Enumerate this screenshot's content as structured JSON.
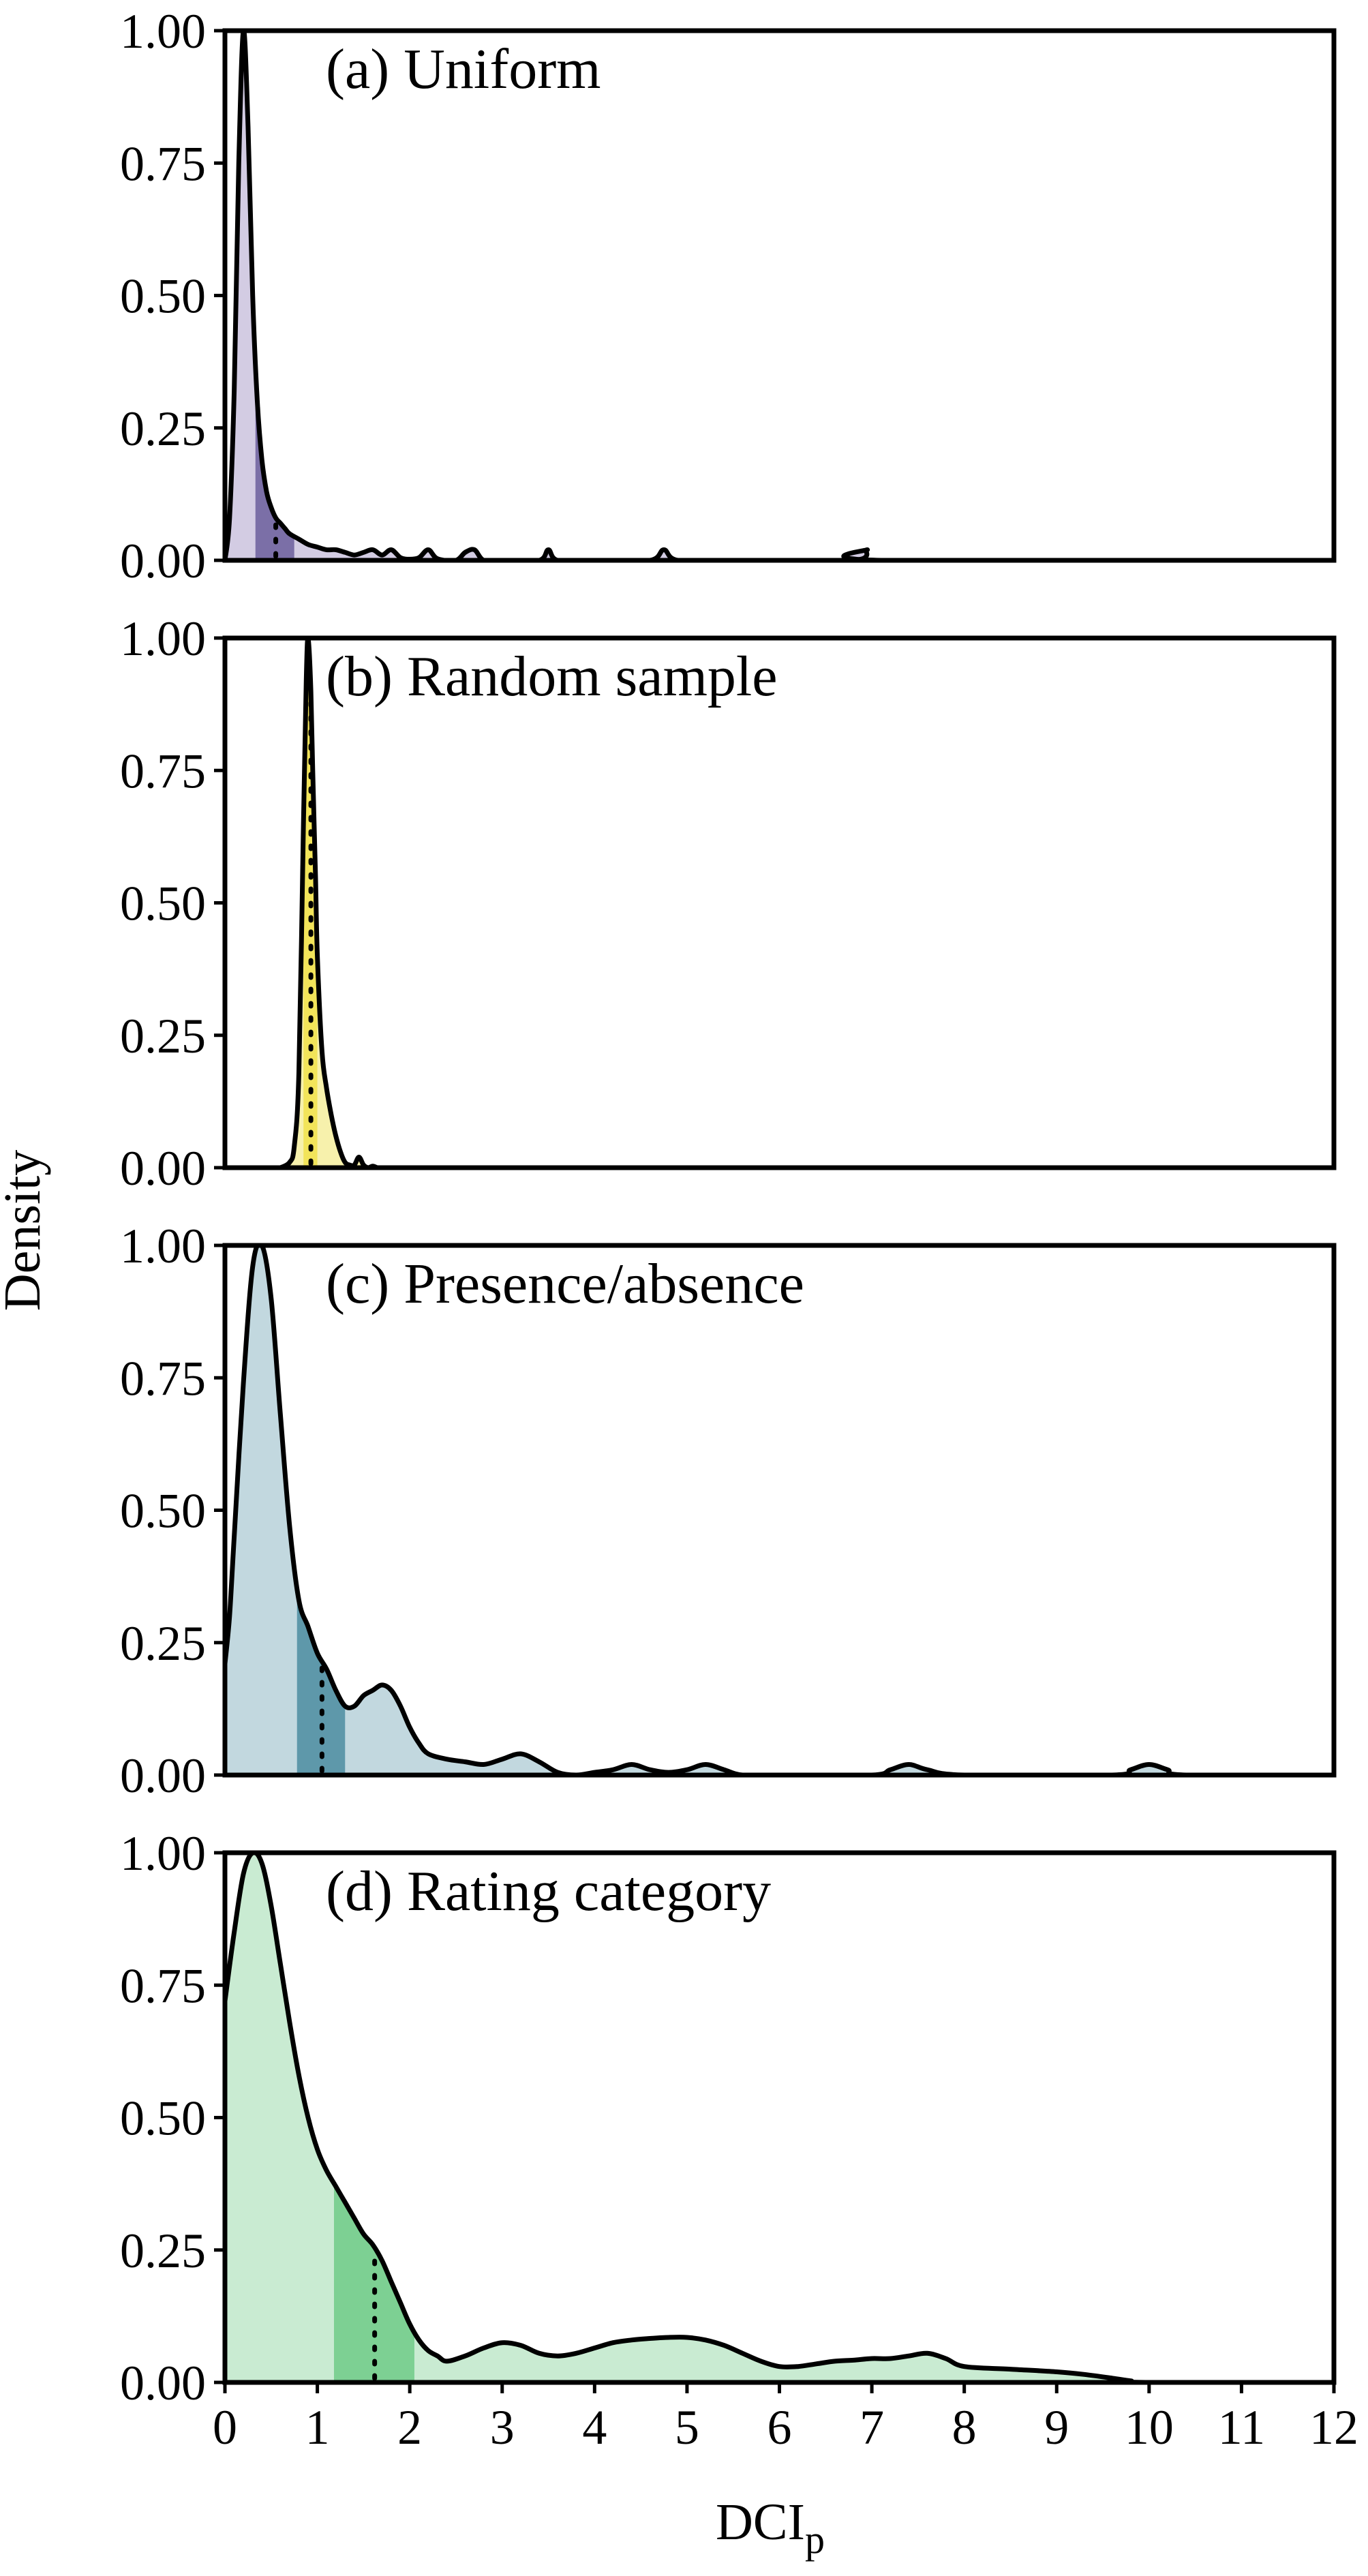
{
  "figure": {
    "ylabel": "Density",
    "xlabel_main": "DCI",
    "xlabel_sub": "p"
  },
  "chart_data": [
    {
      "type": "area",
      "title": "(a) Uniform",
      "fill_color": "#d3cce3",
      "band_color": "#7b6fa7",
      "band": [
        0.33,
        0.75
      ],
      "median": 0.55,
      "xlim": [
        0,
        12
      ],
      "ylim": [
        0,
        1
      ],
      "yticks": [
        "0.00",
        "0.25",
        "0.50",
        "0.75",
        "1.00"
      ],
      "xticks": [],
      "x": [
        0,
        0.05,
        0.1,
        0.15,
        0.2,
        0.25,
        0.3,
        0.35,
        0.4,
        0.45,
        0.5,
        0.55,
        0.6,
        0.65,
        0.7,
        0.8,
        0.9,
        1.0,
        1.1,
        1.2,
        1.3,
        1.4,
        1.5,
        1.6,
        1.7,
        1.8,
        1.9,
        2.0,
        2.1,
        2.2,
        2.3,
        2.5,
        2.6,
        2.7,
        2.8,
        3.0,
        3.4,
        3.5,
        3.6,
        4.0,
        4.6,
        4.75,
        4.9,
        5.5,
        6.8,
        6.95,
        7.1,
        12
      ],
      "values": [
        0.0,
        0.08,
        0.32,
        0.75,
        1.0,
        0.82,
        0.5,
        0.3,
        0.19,
        0.13,
        0.1,
        0.08,
        0.07,
        0.06,
        0.05,
        0.04,
        0.03,
        0.025,
        0.02,
        0.02,
        0.015,
        0.01,
        0.015,
        0.02,
        0.01,
        0.02,
        0.005,
        0.002,
        0.005,
        0.02,
        0.003,
        0.0,
        0.015,
        0.02,
        0.0,
        0.0,
        0.0,
        0.02,
        0.0,
        0.0,
        0.0,
        0.02,
        0.0,
        0.0,
        0.0,
        0.02,
        0.0,
        0.0
      ]
    },
    {
      "type": "area",
      "title": "(b) Random sample",
      "fill_color": "#f7f1ac",
      "band_color": "#f2e45a",
      "band": [
        0.85,
        1.0
      ],
      "median": 0.93,
      "xlim": [
        0,
        12
      ],
      "ylim": [
        0,
        1
      ],
      "yticks": [
        "0.00",
        "0.25",
        "0.50",
        "0.75",
        "1.00"
      ],
      "xticks": [],
      "x": [
        0.6,
        0.7,
        0.75,
        0.8,
        0.85,
        0.88,
        0.9,
        0.93,
        0.95,
        0.98,
        1.0,
        1.05,
        1.1,
        1.15,
        1.2,
        1.25,
        1.3,
        1.35,
        1.4,
        1.45,
        1.5,
        1.55,
        1.6,
        1.65,
        1.7
      ],
      "values": [
        0.0,
        0.01,
        0.04,
        0.18,
        0.65,
        0.92,
        1.0,
        0.9,
        0.75,
        0.55,
        0.4,
        0.22,
        0.15,
        0.1,
        0.06,
        0.03,
        0.01,
        0.005,
        0.005,
        0.02,
        0.005,
        0.0,
        0.003,
        0.0,
        0.0
      ]
    },
    {
      "type": "area",
      "title": "(c) Presence/absence",
      "fill_color": "#c2d8df",
      "band_color": "#5e98aa",
      "band": [
        0.78,
        1.3
      ],
      "median": 1.05,
      "xlim": [
        0,
        12
      ],
      "ylim": [
        0,
        1
      ],
      "yticks": [
        "0.00",
        "0.25",
        "0.50",
        "0.75",
        "1.00"
      ],
      "xticks": [],
      "x": [
        0,
        0.05,
        0.1,
        0.2,
        0.3,
        0.4,
        0.5,
        0.6,
        0.7,
        0.8,
        0.9,
        1.0,
        1.1,
        1.2,
        1.3,
        1.4,
        1.5,
        1.6,
        1.7,
        1.8,
        1.9,
        2.0,
        2.1,
        2.2,
        2.4,
        2.6,
        2.8,
        3.0,
        3.2,
        3.4,
        3.6,
        3.8,
        4.0,
        4.2,
        4.4,
        4.6,
        4.8,
        5.0,
        5.2,
        5.4,
        5.6,
        6.0,
        7.0,
        7.2,
        7.4,
        7.6,
        8.0,
        9.6,
        9.8,
        10.0,
        10.2,
        10.4,
        12
      ],
      "values": [
        0.21,
        0.3,
        0.45,
        0.74,
        0.96,
        1.0,
        0.9,
        0.68,
        0.47,
        0.33,
        0.28,
        0.23,
        0.2,
        0.16,
        0.13,
        0.13,
        0.15,
        0.16,
        0.17,
        0.16,
        0.13,
        0.09,
        0.06,
        0.04,
        0.03,
        0.025,
        0.02,
        0.03,
        0.04,
        0.025,
        0.005,
        0.0,
        0.005,
        0.01,
        0.02,
        0.01,
        0.005,
        0.01,
        0.02,
        0.01,
        0.0,
        0.0,
        0.0,
        0.01,
        0.02,
        0.01,
        0.0,
        0.0,
        0.01,
        0.02,
        0.01,
        0.0,
        0.0
      ]
    },
    {
      "type": "area",
      "title": "(d) Rating category",
      "fill_color": "#c9ebd2",
      "band_color": "#7dd093",
      "band": [
        1.18,
        2.05
      ],
      "median": 1.62,
      "xlim": [
        0,
        12
      ],
      "ylim": [
        0,
        1
      ],
      "yticks": [
        "0.00",
        "0.25",
        "0.50",
        "0.75",
        "1.00"
      ],
      "xticks": [
        "0",
        "1",
        "2",
        "3",
        "4",
        "5",
        "6",
        "7",
        "8",
        "9",
        "10",
        "11",
        "12"
      ],
      "x": [
        0,
        0.1,
        0.2,
        0.3,
        0.4,
        0.5,
        0.6,
        0.7,
        0.8,
        0.9,
        1.0,
        1.1,
        1.2,
        1.3,
        1.4,
        1.5,
        1.6,
        1.7,
        1.8,
        1.9,
        2.0,
        2.1,
        2.2,
        2.3,
        2.4,
        2.6,
        2.8,
        3.0,
        3.2,
        3.4,
        3.6,
        3.8,
        4.0,
        4.2,
        4.4,
        4.6,
        4.8,
        5.0,
        5.2,
        5.4,
        5.6,
        5.8,
        6.0,
        6.2,
        6.4,
        6.6,
        6.8,
        7.0,
        7.2,
        7.4,
        7.6,
        7.8,
        8.0,
        8.5,
        9.0,
        9.3,
        9.6,
        9.8,
        10.0,
        12
      ],
      "values": [
        0.72,
        0.85,
        0.96,
        1.0,
        0.98,
        0.9,
        0.79,
        0.68,
        0.58,
        0.5,
        0.44,
        0.4,
        0.37,
        0.34,
        0.31,
        0.28,
        0.26,
        0.23,
        0.19,
        0.15,
        0.11,
        0.08,
        0.06,
        0.05,
        0.04,
        0.05,
        0.065,
        0.075,
        0.07,
        0.055,
        0.05,
        0.055,
        0.065,
        0.075,
        0.08,
        0.083,
        0.085,
        0.085,
        0.08,
        0.07,
        0.055,
        0.04,
        0.03,
        0.03,
        0.035,
        0.04,
        0.042,
        0.045,
        0.045,
        0.05,
        0.055,
        0.045,
        0.03,
        0.025,
        0.02,
        0.015,
        0.008,
        0.003,
        0.0,
        0.0
      ]
    }
  ]
}
